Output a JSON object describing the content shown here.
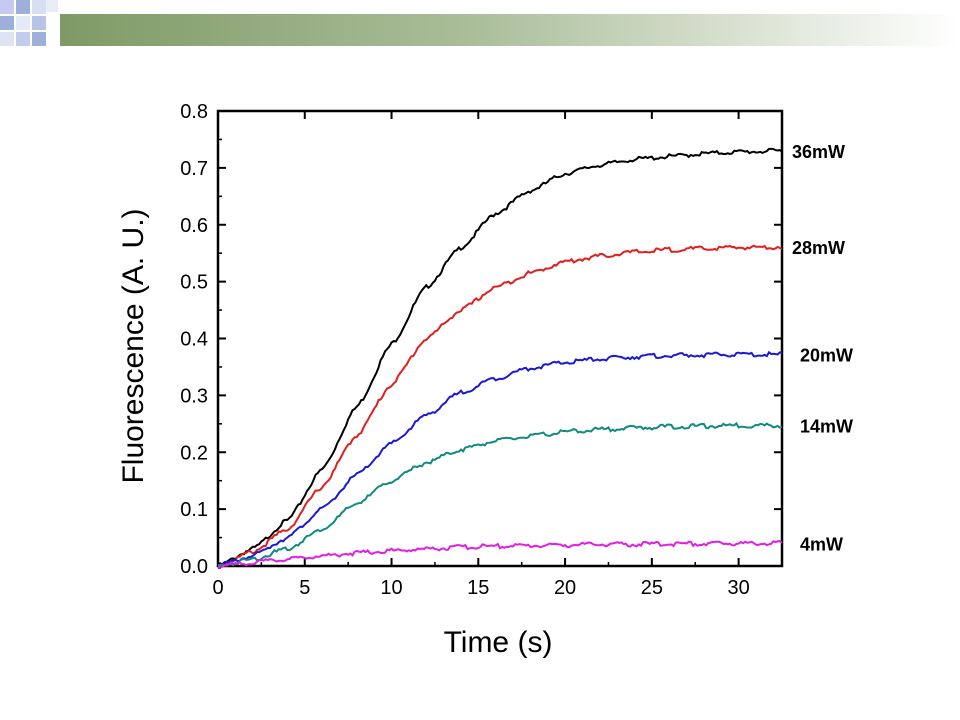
{
  "chart_data": {
    "type": "line",
    "title": "",
    "xlabel": "Time (s)",
    "ylabel": "Fluorescence (A. U.)",
    "xlim": [
      0,
      32.5
    ],
    "ylim": [
      0,
      0.8
    ],
    "xticks": [
      "0",
      "5",
      "10",
      "15",
      "20",
      "25",
      "30"
    ],
    "yticks": [
      "0.0",
      "0.1",
      "0.2",
      "0.3",
      "0.4",
      "0.5",
      "0.6",
      "0.7",
      "0.8"
    ],
    "grid": false,
    "legend": "labels at right end of each series",
    "x": [
      0,
      2,
      4,
      6,
      8,
      10,
      12,
      14,
      16,
      18,
      20,
      22,
      24,
      26,
      28,
      30,
      32.5
    ],
    "series": [
      {
        "name": "36mW",
        "color": "#000000",
        "values": [
          0.0,
          0.03,
          0.08,
          0.17,
          0.28,
          0.39,
          0.49,
          0.56,
          0.62,
          0.66,
          0.69,
          0.705,
          0.715,
          0.72,
          0.725,
          0.728,
          0.73
        ]
      },
      {
        "name": "28mW",
        "color": "#e02020",
        "values": [
          0.0,
          0.025,
          0.065,
          0.14,
          0.23,
          0.32,
          0.4,
          0.45,
          0.49,
          0.515,
          0.535,
          0.545,
          0.552,
          0.556,
          0.558,
          0.56,
          0.561
        ]
      },
      {
        "name": "20mW",
        "color": "#1a1ad6",
        "values": [
          0.0,
          0.018,
          0.05,
          0.1,
          0.16,
          0.215,
          0.265,
          0.305,
          0.33,
          0.348,
          0.358,
          0.364,
          0.368,
          0.37,
          0.371,
          0.372,
          0.372
        ]
      },
      {
        "name": "14mW",
        "color": "#138a80",
        "values": [
          0.0,
          0.012,
          0.03,
          0.065,
          0.11,
          0.15,
          0.182,
          0.205,
          0.22,
          0.228,
          0.236,
          0.24,
          0.243,
          0.245,
          0.246,
          0.247,
          0.247
        ]
      },
      {
        "name": "4mW",
        "color": "#e020e0",
        "values": [
          0.0,
          0.006,
          0.012,
          0.018,
          0.023,
          0.027,
          0.03,
          0.033,
          0.035,
          0.036,
          0.037,
          0.038,
          0.038,
          0.039,
          0.039,
          0.04,
          0.04
        ]
      }
    ]
  }
}
